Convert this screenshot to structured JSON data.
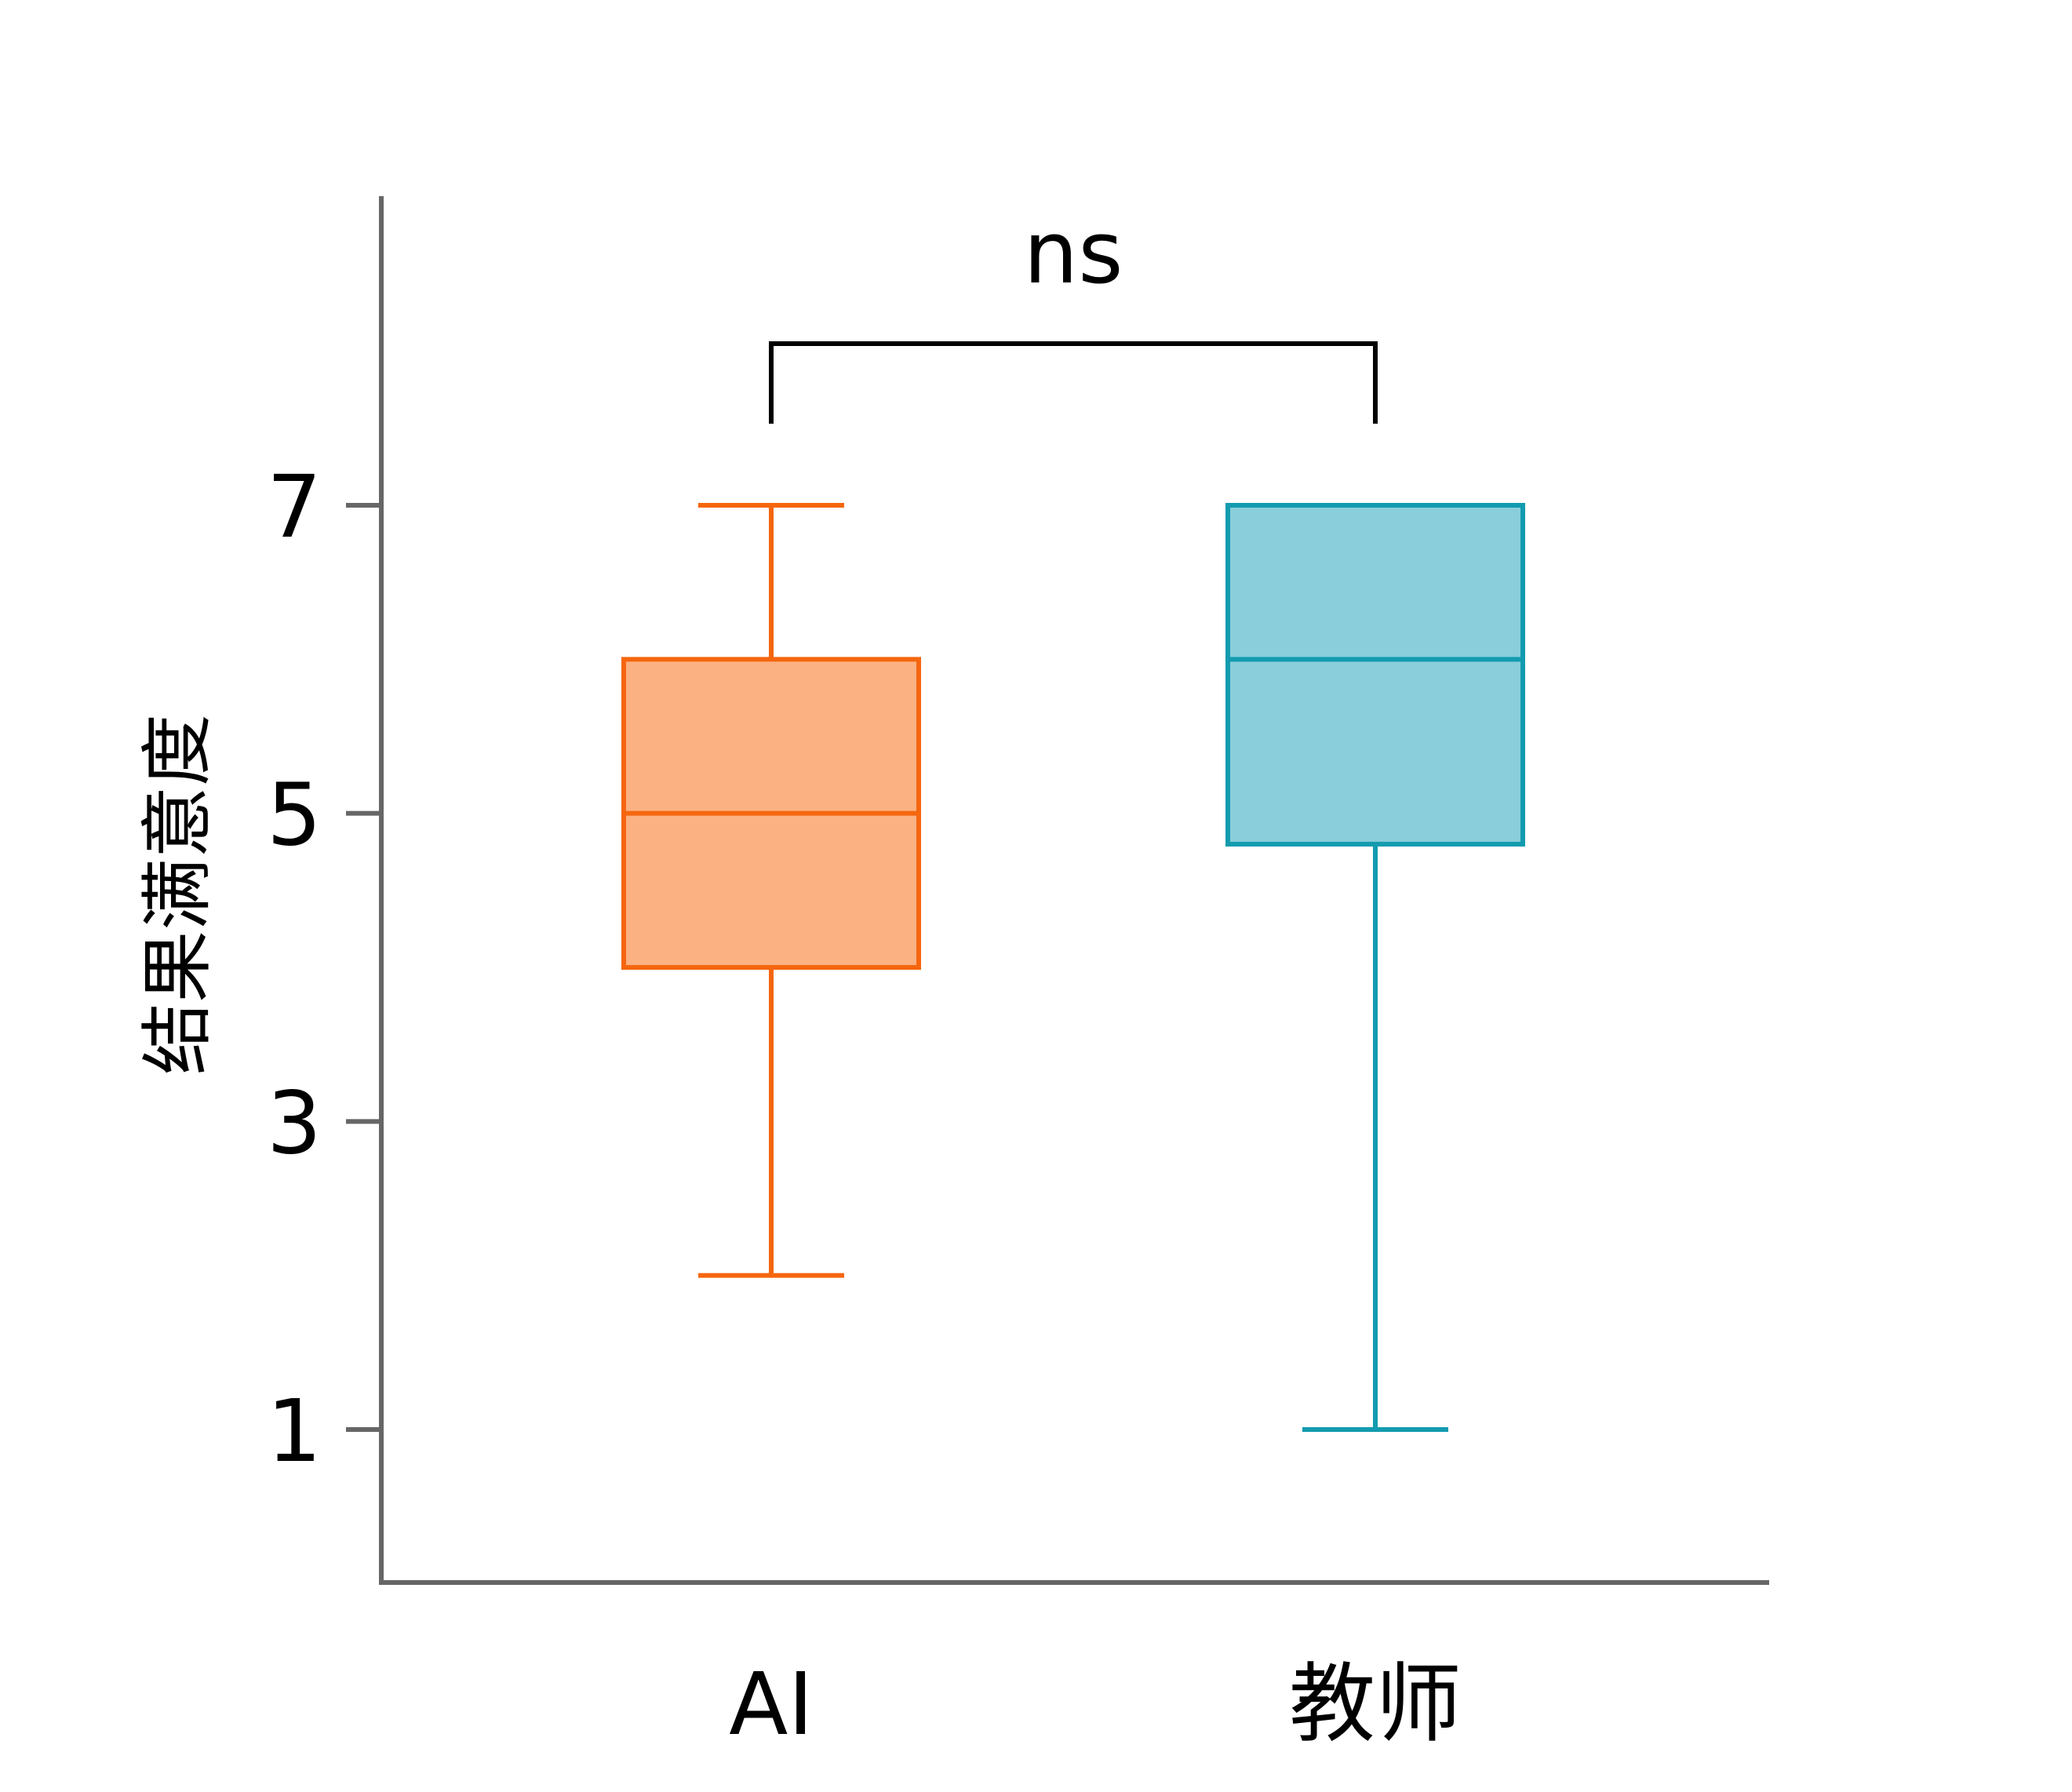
{
  "chart_data": {
    "type": "box",
    "title": "",
    "xlabel": "",
    "ylabel": "结果满意度",
    "ylim": [
      0,
      8.9
    ],
    "yticks": [
      "1",
      "3",
      "5",
      "7"
    ],
    "ytick_values": [
      1,
      3,
      5,
      7
    ],
    "categories": [
      "AI",
      "教师"
    ],
    "boxes": [
      {
        "category": "AI",
        "min": 2,
        "q1": 4,
        "median": 5,
        "q3": 6,
        "max": 7,
        "stroke": "#f5660f",
        "fill": "#fcb183"
      },
      {
        "category": "教师",
        "min": 1,
        "q1": 4.8,
        "median": 6,
        "q3": 7,
        "max": 7,
        "stroke": "#139baf",
        "fill": "#89ceda"
      }
    ],
    "significance": {
      "label": "ns",
      "between": [
        "AI",
        "教师"
      ]
    },
    "axis_color": "#666666",
    "grid": false,
    "legend": "none"
  }
}
